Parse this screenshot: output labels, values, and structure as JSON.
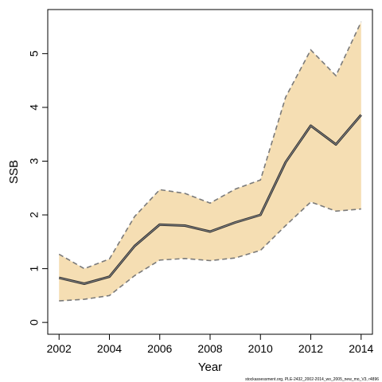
{
  "chart_data": {
    "type": "area",
    "xlabel": "Year",
    "ylabel": "SSB",
    "x": [
      2002,
      2003,
      2004,
      2005,
      2006,
      2007,
      2008,
      2009,
      2010,
      2011,
      2012,
      2013,
      2014
    ],
    "series": [
      {
        "values": [
          0.83,
          0.72,
          0.85,
          1.42,
          1.82,
          1.8,
          1.69,
          1.86,
          2.0,
          2.98,
          3.66,
          3.31,
          3.86
        ]
      }
    ],
    "band_upper": [
      1.27,
      1.0,
      1.18,
      1.97,
      2.47,
      2.4,
      2.22,
      2.48,
      2.65,
      4.19,
      5.07,
      4.59,
      5.59
    ],
    "band_lower": [
      0.4,
      0.43,
      0.5,
      0.87,
      1.16,
      1.19,
      1.15,
      1.2,
      1.34,
      1.8,
      2.24,
      2.07,
      2.11
    ],
    "xticks": [
      2002,
      2004,
      2006,
      2008,
      2010,
      2012,
      2014
    ],
    "yticks": [
      0,
      1,
      2,
      3,
      4,
      5
    ],
    "xlim": [
      2001.55,
      2014.45
    ],
    "ylim": [
      -0.22,
      5.82
    ],
    "grid": false,
    "colors": {
      "band": "#f5deb3",
      "line": "#303030",
      "band_edge": "#7a7a7a"
    }
  },
  "credit": "stockassessment.org, PLE-2432_2002-2014_wo_2005_new_mo_V3, r4896"
}
